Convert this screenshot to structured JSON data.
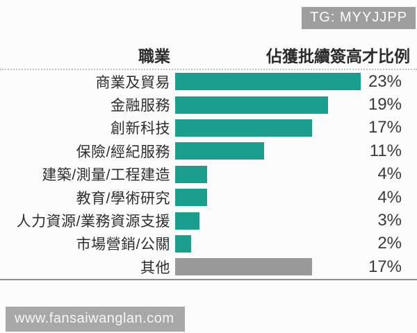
{
  "badge": {
    "label": "TG: MYYJJPP"
  },
  "watermark": {
    "label": "www.fansaiwanglan.com"
  },
  "colors": {
    "accent_teal": "#1a9e8e",
    "other_gray": "#999999",
    "badge_gray": "#9e9e9e",
    "text_dark": "#2e2e2e"
  },
  "chart_data": {
    "type": "bar",
    "orientation": "horizontal",
    "title": "",
    "column_headers": {
      "category": "職業",
      "value": "佔獲批續簽高才比例"
    },
    "unit": "%",
    "xlim": [
      0,
      25
    ],
    "grid": false,
    "legend": false,
    "rows": [
      {
        "label": "商業及貿易",
        "value": 23,
        "value_label": "23%",
        "color": "#1a9e8e"
      },
      {
        "label": "金融服務",
        "value": 19,
        "value_label": "19%",
        "color": "#1a9e8e"
      },
      {
        "label": "創新科技",
        "value": 17,
        "value_label": "17%",
        "color": "#1a9e8e"
      },
      {
        "label": "保險/經紀服務",
        "value": 11,
        "value_label": "11%",
        "color": "#1a9e8e"
      },
      {
        "label": "建築/測量/工程建造",
        "value": 4,
        "value_label": "4%",
        "color": "#1a9e8e"
      },
      {
        "label": "教育/學術研究",
        "value": 4,
        "value_label": "4%",
        "color": "#1a9e8e"
      },
      {
        "label": "人力資源/業務資源支援",
        "value": 3,
        "value_label": "3%",
        "color": "#1a9e8e"
      },
      {
        "label": "市場營銷/公關",
        "value": 2,
        "value_label": "2%",
        "color": "#1a9e8e"
      },
      {
        "label": "其他",
        "value": 17,
        "value_label": "17%",
        "color": "#999999"
      }
    ]
  }
}
